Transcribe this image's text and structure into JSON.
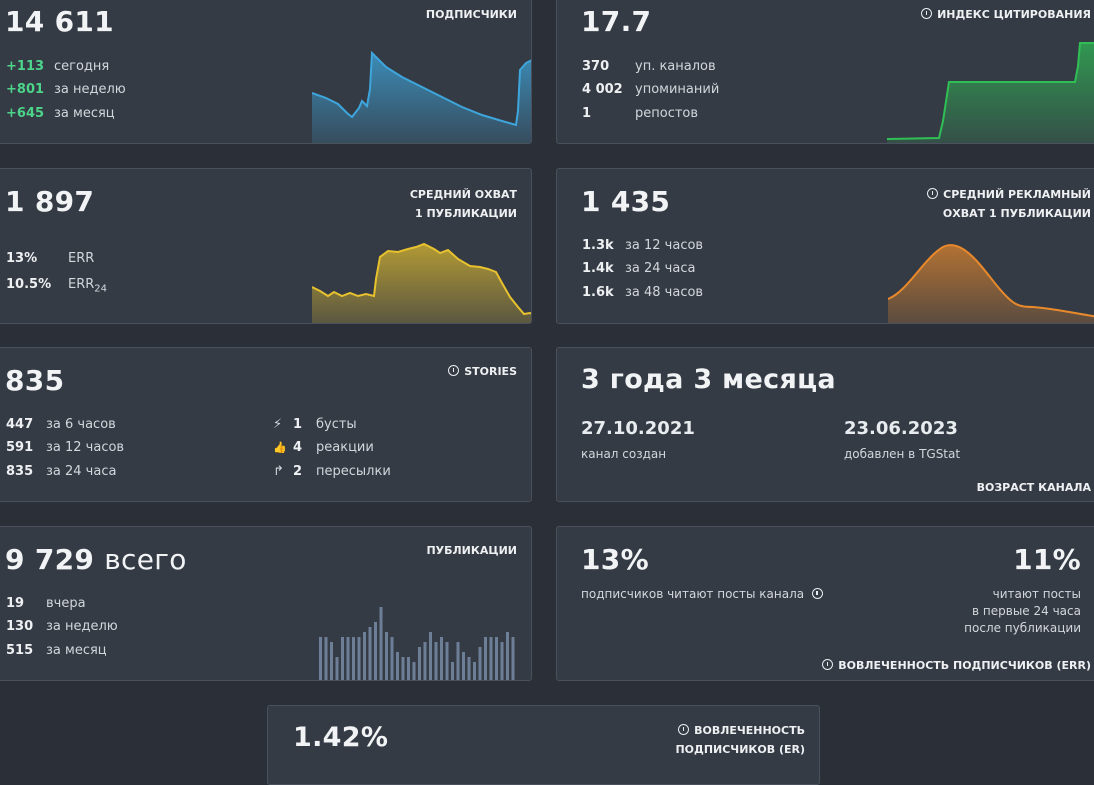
{
  "subscribers": {
    "title": "ПОДПИСЧИКИ",
    "value": "14 611",
    "rows": [
      {
        "num": "+113",
        "label": "сегодня"
      },
      {
        "num": "+801",
        "label": "за неделю"
      },
      {
        "num": "+645",
        "label": "за месяц"
      }
    ]
  },
  "citation": {
    "title": "ИНДЕКС ЦИТИРОВАНИЯ",
    "value": "17.7",
    "rows": [
      {
        "num": "370",
        "label": "уп. каналов"
      },
      {
        "num": "4 002",
        "label": "упоминаний"
      },
      {
        "num": "1",
        "label": "репостов"
      }
    ]
  },
  "reach": {
    "title_line1": "СРЕДНИЙ ОХВАТ",
    "title_line2": "1 ПУБЛИКАЦИИ",
    "value": "1 897",
    "rows": [
      {
        "num": "13%",
        "label": "ERR"
      },
      {
        "num": "10.5%",
        "label": "ERR",
        "sub": "24"
      }
    ]
  },
  "ad_reach": {
    "title_line1": "СРЕДНИЙ РЕКЛАМНЫЙ",
    "title_line2": "ОХВАТ 1 ПУБЛИКАЦИИ",
    "value": "1 435",
    "rows": [
      {
        "num": "1.3k",
        "label": "за 12 часов"
      },
      {
        "num": "1.4k",
        "label": "за 24 часа"
      },
      {
        "num": "1.6k",
        "label": "за 48 часов"
      }
    ]
  },
  "stories": {
    "title": "STORIES",
    "value": "835",
    "rows": [
      {
        "num": "447",
        "label": "за 6 часов"
      },
      {
        "num": "591",
        "label": "за 12 часов"
      },
      {
        "num": "835",
        "label": "за 24 часа"
      }
    ],
    "right_rows": [
      {
        "icon": "boost-icon",
        "glyph": "⚡",
        "num": "1",
        "label": "бусты"
      },
      {
        "icon": "thumbs-up-icon",
        "glyph": "👍",
        "num": "4",
        "label": "реакции"
      },
      {
        "icon": "forward-icon",
        "glyph": "↱",
        "num": "2",
        "label": "пересылки"
      }
    ]
  },
  "age": {
    "value": "3 года 3 месяца",
    "created_date": "27.10.2021",
    "created_label": "канал создан",
    "added_date": "23.06.2023",
    "added_label": "добавлен в TGStat",
    "title": "ВОЗРАСТ КАНАЛА"
  },
  "posts": {
    "title": "ПУБЛИКАЦИИ",
    "value": "9 729",
    "value_suffix": "всего",
    "rows": [
      {
        "num": "19",
        "label": "вчера"
      },
      {
        "num": "130",
        "label": "за неделю"
      },
      {
        "num": "515",
        "label": "за месяц"
      }
    ],
    "bars": [
      9,
      9,
      8,
      5,
      9,
      9,
      9,
      9,
      10,
      11,
      12,
      15,
      10,
      9,
      6,
      5,
      5,
      4,
      7,
      8,
      10,
      8,
      9,
      8,
      4,
      8,
      6,
      5,
      4,
      7,
      9,
      9,
      9,
      8,
      10,
      9
    ]
  },
  "engagement": {
    "left_value": "13%",
    "left_label": "подписчиков читают посты канала",
    "right_value": "11%",
    "right_line1": "читают посты",
    "right_line2": "в первые 24 часа",
    "right_line3": "после публикации",
    "title": "ВОВЛЕЧЕННОСТЬ ПОДПИСЧИКОВ (ERR)"
  },
  "er": {
    "value": "1.42%",
    "title_line1": "ВОВЛЕЧЕННОСТЬ",
    "title_line2": "ПОДПИСЧИКОВ (ER)"
  },
  "colors": {
    "blue": "#3ea6dc",
    "green": "#2fbf55",
    "yellow": "#e8c22e",
    "orange": "#e8892b",
    "bars": "#6d7f96"
  }
}
